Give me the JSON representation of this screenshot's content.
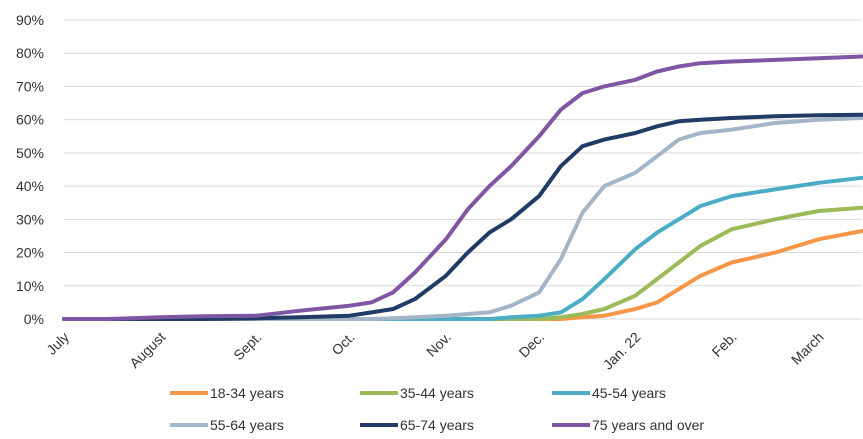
{
  "chart_data": {
    "type": "line",
    "x": [
      "07-01",
      "07-15",
      "08-01",
      "08-15",
      "09-01",
      "09-15",
      "10-01",
      "10-08",
      "10-15",
      "10-22",
      "11-01",
      "11-08",
      "11-15",
      "11-22",
      "12-01",
      "12-08",
      "12-15",
      "12-22",
      "01-01",
      "01-08",
      "01-15",
      "01-22",
      "02-01",
      "02-15",
      "03-01",
      "03-15"
    ],
    "x_tick_labels": [
      "July",
      "August",
      "Sept.",
      "Oct.",
      "Nov.",
      "Dec.",
      "Jan. 22",
      "Feb.",
      "March"
    ],
    "ylim": [
      0,
      90
    ],
    "y_tick_labels": [
      "0%",
      "10%",
      "20%",
      "30%",
      "40%",
      "50%",
      "60%",
      "70%",
      "80%",
      "90%"
    ],
    "grid": "horizontal",
    "legend_position": "bottom",
    "series": [
      {
        "name": "18-34 years",
        "color": "#f79646",
        "values": [
          0,
          0,
          0,
          0,
          0,
          0,
          0,
          0,
          0,
          0,
          0,
          0,
          0,
          0,
          0,
          0,
          0.5,
          1,
          3,
          5,
          9,
          13,
          17,
          20,
          24,
          26.5
        ]
      },
      {
        "name": "35-44 years",
        "color": "#9bbb59",
        "values": [
          0,
          0,
          0,
          0,
          0,
          0,
          0,
          0,
          0,
          0,
          0,
          0,
          0,
          0,
          0,
          0.5,
          1.5,
          3,
          7,
          12,
          17,
          22,
          27,
          30,
          32.5,
          33.5
        ]
      },
      {
        "name": "45-54 years",
        "color": "#4bacc6",
        "values": [
          0,
          0,
          0,
          0,
          0,
          0,
          0,
          0,
          0,
          0,
          0,
          0,
          0,
          0.5,
          1,
          2,
          6,
          12,
          21,
          26,
          30,
          34,
          37,
          39,
          41,
          42.5
        ]
      },
      {
        "name": "55-64 years",
        "color": "#a3b5c7",
        "values": [
          0,
          0,
          0,
          0,
          0,
          0,
          0,
          0,
          0.2,
          0.5,
          1,
          1.5,
          2,
          4,
          8,
          18,
          32,
          40,
          44,
          49,
          54,
          56,
          57,
          59,
          60,
          60.5
        ]
      },
      {
        "name": "65-74 years",
        "color": "#1f3b66",
        "values": [
          0,
          0,
          0,
          0,
          0.2,
          0.5,
          1,
          2,
          3,
          6,
          13,
          20,
          26,
          30,
          37,
          46,
          52,
          54,
          56,
          58,
          59.5,
          60,
          60.5,
          61,
          61.3,
          61.5
        ]
      },
      {
        "name": "75 years and over",
        "color": "#7f56a3",
        "values": [
          0,
          0,
          0.5,
          0.8,
          1,
          2.5,
          4,
          5,
          8,
          14,
          24,
          33,
          40,
          46,
          55,
          63,
          68,
          70,
          72,
          74.5,
          76,
          77,
          77.5,
          78,
          78.5,
          79
        ]
      }
    ]
  }
}
